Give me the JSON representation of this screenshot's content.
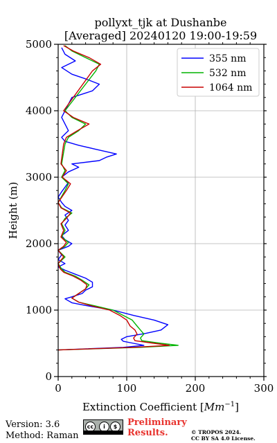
{
  "chart_data": {
    "type": "line",
    "orientation": "vertical-profile",
    "title_line1": "pollyxt_tjk at Dushanbe",
    "title_line2": "[Averaged] 20240120 19:00-19:59",
    "xlabel": "Extinction Coefficient [",
    "xlabel_unit": "Mm",
    "xlabel_exp": "−1",
    "xlabel_end": "]",
    "ylabel": "Height (m)",
    "xlim": [
      0,
      300
    ],
    "ylim": [
      0,
      5000
    ],
    "xticks": [
      "0",
      "100",
      "200",
      "300"
    ],
    "yticks": [
      "0",
      "1000",
      "2000",
      "3000",
      "4000",
      "5000"
    ],
    "grid": true,
    "legend_position": "top-right",
    "series": [
      {
        "name": "355 nm",
        "color": "#0000ff",
        "points": [
          [
            0,
            400
          ],
          [
            95,
            440
          ],
          [
            125,
            470
          ],
          [
            110,
            500
          ],
          [
            95,
            530
          ],
          [
            92,
            560
          ],
          [
            100,
            600
          ],
          [
            128,
            650
          ],
          [
            150,
            700
          ],
          [
            160,
            780
          ],
          [
            140,
            850
          ],
          [
            110,
            920
          ],
          [
            80,
            1000
          ],
          [
            40,
            1070
          ],
          [
            20,
            1110
          ],
          [
            10,
            1170
          ],
          [
            20,
            1200
          ],
          [
            35,
            1250
          ],
          [
            40,
            1300
          ],
          [
            50,
            1350
          ],
          [
            50,
            1420
          ],
          [
            40,
            1480
          ],
          [
            25,
            1540
          ],
          [
            10,
            1600
          ],
          [
            0,
            1650
          ],
          [
            10,
            1700
          ],
          [
            0,
            1760
          ],
          [
            5,
            1830
          ],
          [
            0,
            1900
          ],
          [
            15,
            1960
          ],
          [
            20,
            2000
          ],
          [
            10,
            2060
          ],
          [
            5,
            2120
          ],
          [
            15,
            2200
          ],
          [
            10,
            2280
          ],
          [
            15,
            2350
          ],
          [
            10,
            2430
          ],
          [
            20,
            2500
          ],
          [
            10,
            2560
          ],
          [
            5,
            2620
          ],
          [
            0,
            2700
          ],
          [
            5,
            2780
          ],
          [
            10,
            2850
          ],
          [
            15,
            2920
          ],
          [
            5,
            3000
          ],
          [
            15,
            3080
          ],
          [
            30,
            3150
          ],
          [
            20,
            3200
          ],
          [
            60,
            3250
          ],
          [
            70,
            3300
          ],
          [
            85,
            3350
          ],
          [
            55,
            3420
          ],
          [
            30,
            3480
          ],
          [
            10,
            3540
          ],
          [
            5,
            3600
          ],
          [
            15,
            3700
          ],
          [
            10,
            3800
          ],
          [
            5,
            3900
          ],
          [
            10,
            4000
          ],
          [
            15,
            4100
          ],
          [
            20,
            4200
          ],
          [
            50,
            4300
          ],
          [
            60,
            4400
          ],
          [
            40,
            4480
          ],
          [
            20,
            4550
          ],
          [
            5,
            4650
          ],
          [
            25,
            4750
          ],
          [
            10,
            4850
          ],
          [
            5,
            4950
          ]
        ]
      },
      {
        "name": "532 nm",
        "color": "#00b400",
        "points": [
          [
            0,
            400
          ],
          [
            120,
            440
          ],
          [
            175,
            470
          ],
          [
            150,
            500
          ],
          [
            122,
            540
          ],
          [
            120,
            580
          ],
          [
            125,
            640
          ],
          [
            120,
            700
          ],
          [
            115,
            760
          ],
          [
            108,
            850
          ],
          [
            95,
            920
          ],
          [
            80,
            1000
          ],
          [
            55,
            1060
          ],
          [
            30,
            1120
          ],
          [
            20,
            1180
          ],
          [
            30,
            1250
          ],
          [
            40,
            1320
          ],
          [
            45,
            1380
          ],
          [
            35,
            1450
          ],
          [
            25,
            1510
          ],
          [
            10,
            1570
          ],
          [
            5,
            1620
          ],
          [
            0,
            1700
          ],
          [
            10,
            1800
          ],
          [
            0,
            1900
          ],
          [
            10,
            1960
          ],
          [
            15,
            2020
          ],
          [
            5,
            2100
          ],
          [
            10,
            2200
          ],
          [
            5,
            2300
          ],
          [
            10,
            2380
          ],
          [
            20,
            2460
          ],
          [
            5,
            2540
          ],
          [
            0,
            2620
          ],
          [
            10,
            2800
          ],
          [
            15,
            2900
          ],
          [
            5,
            3000
          ],
          [
            10,
            3100
          ],
          [
            5,
            3200
          ],
          [
            10,
            3500
          ],
          [
            15,
            3600
          ],
          [
            30,
            3700
          ],
          [
            40,
            3800
          ],
          [
            20,
            3900
          ],
          [
            10,
            4000
          ],
          [
            55,
            4600
          ],
          [
            60,
            4700
          ],
          [
            40,
            4800
          ],
          [
            20,
            4900
          ],
          [
            10,
            4980
          ]
        ]
      },
      {
        "name": "1064 nm",
        "color": "#c80000",
        "points": [
          [
            0,
            400
          ],
          [
            110,
            440
          ],
          [
            162,
            470
          ],
          [
            140,
            500
          ],
          [
            112,
            540
          ],
          [
            110,
            580
          ],
          [
            115,
            640
          ],
          [
            112,
            700
          ],
          [
            105,
            760
          ],
          [
            100,
            850
          ],
          [
            90,
            920
          ],
          [
            75,
            1000
          ],
          [
            50,
            1060
          ],
          [
            30,
            1120
          ],
          [
            20,
            1180
          ],
          [
            30,
            1250
          ],
          [
            40,
            1320
          ],
          [
            42,
            1380
          ],
          [
            33,
            1450
          ],
          [
            22,
            1510
          ],
          [
            8,
            1570
          ],
          [
            3,
            1620
          ],
          [
            0,
            1700
          ],
          [
            8,
            1800
          ],
          [
            0,
            1900
          ],
          [
            8,
            1960
          ],
          [
            12,
            2020
          ],
          [
            4,
            2100
          ],
          [
            8,
            2200
          ],
          [
            4,
            2300
          ],
          [
            12,
            2380
          ],
          [
            18,
            2460
          ],
          [
            4,
            2540
          ],
          [
            0,
            2620
          ],
          [
            12,
            2800
          ],
          [
            18,
            2900
          ],
          [
            6,
            3000
          ],
          [
            12,
            3100
          ],
          [
            4,
            3200
          ],
          [
            8,
            3500
          ],
          [
            12,
            3600
          ],
          [
            28,
            3700
          ],
          [
            45,
            3800
          ],
          [
            22,
            3900
          ],
          [
            8,
            4000
          ],
          [
            50,
            4600
          ],
          [
            62,
            4700
          ],
          [
            45,
            4800
          ],
          [
            22,
            4900
          ],
          [
            8,
            4980
          ]
        ]
      }
    ]
  },
  "footer": {
    "version": "Version: 3.6",
    "method": "Method: Raman",
    "cc_glyphs": [
      "cc",
      "i",
      "$"
    ],
    "preliminary": "Preliminary Results.",
    "copyright_line1": "© TROPOS 2024.",
    "copyright_line2": "CC BY SA 4.0 License."
  }
}
